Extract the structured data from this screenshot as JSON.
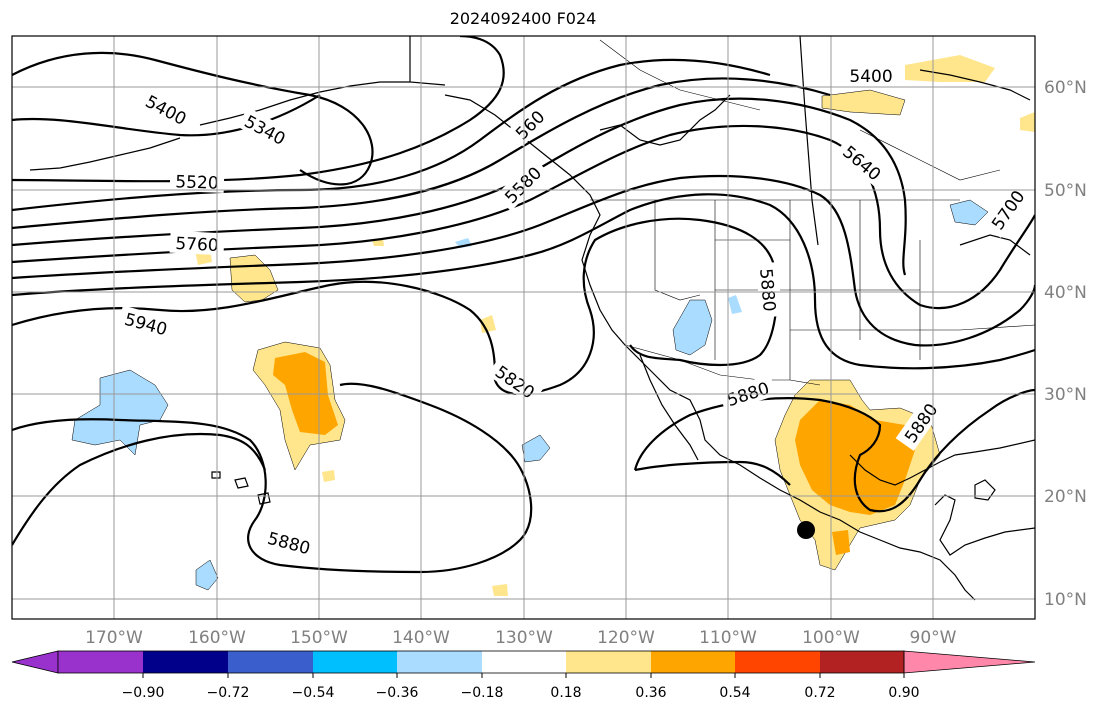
{
  "title": "2024092400 F024",
  "map": {
    "lat_labels": [
      "60°N",
      "50°N",
      "40°N",
      "30°N",
      "20°N",
      "10°N"
    ],
    "lon_labels": [
      "170°W",
      "160°W",
      "150°W",
      "140°W",
      "130°W",
      "120°W",
      "110°W",
      "100°W",
      "90°W"
    ],
    "contour_labels": [
      "5400",
      "5340",
      "5520",
      "5760",
      "5940",
      "5580",
      "5820",
      "5880",
      "5880",
      "5880",
      "5880",
      "5400",
      "5640",
      "5700",
      "560"
    ],
    "shading_colors": {
      "pos_018": "#ffe68c",
      "pos_036": "#ffa500",
      "neg_018": "#aadcff"
    }
  },
  "colorbar": {
    "ticks": [
      "−0.90",
      "−0.72",
      "−0.54",
      "−0.36",
      "−0.18",
      "0.18",
      "0.36",
      "0.54",
      "0.72",
      "0.90"
    ],
    "colors": [
      "#9932cc",
      "#00008b",
      "#3a5fcd",
      "#00bfff",
      "#aadcff",
      "#ffffff",
      "#ffe68c",
      "#ffa500",
      "#ff4500",
      "#b22222",
      "#ff88aa"
    ]
  }
}
